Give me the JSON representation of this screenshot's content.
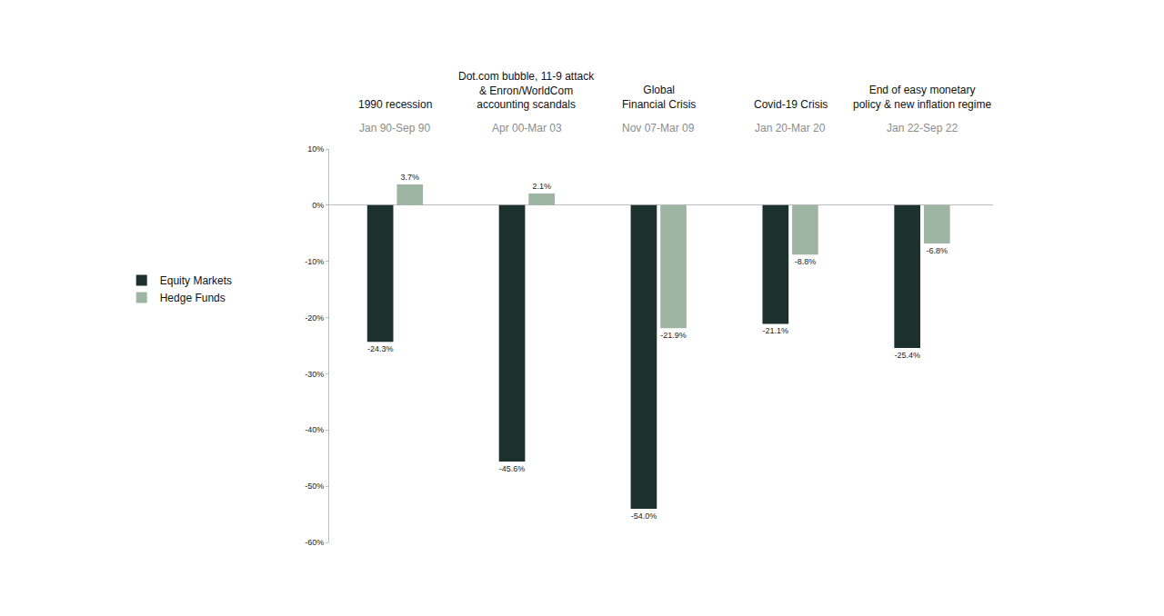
{
  "chart_data": {
    "type": "bar",
    "categories": [
      "1990 recession",
      "Dot.com bubble, 11-9 attack\n& Enron/WorldCom\naccounting scandals",
      "Global\nFinancial Crisis",
      "Covid-19 Crisis",
      "End of easy monetary\npolicy & new inflation regime"
    ],
    "periods": [
      "Jan 90-Sep 90",
      "Apr 00-Mar 03",
      "Nov 07-Mar 09",
      "Jan 20-Mar 20",
      "Jan 22-Sep 22"
    ],
    "series": [
      {
        "name": "Equity Markets",
        "color": "#1c312e",
        "values": [
          -24.3,
          -45.6,
          -54.0,
          -21.1,
          -25.4
        ],
        "value_labels": [
          "-24.3%",
          "-45.6%",
          "-54.0%",
          "-21.1%",
          "-25.4%"
        ]
      },
      {
        "name": "Hedge Funds",
        "color": "#9fb5a4",
        "values": [
          3.7,
          2.1,
          -21.9,
          -8.8,
          -6.8
        ],
        "value_labels": [
          "3.7%",
          "2.1%",
          "-21.9%",
          "-8.8%",
          "-6.8%"
        ]
      }
    ],
    "ylim": [
      -60,
      10
    ],
    "yticks": [
      {
        "value": 10,
        "label": "10%"
      },
      {
        "value": 0,
        "label": "0%"
      },
      {
        "value": -10,
        "label": "-10%"
      },
      {
        "value": -20,
        "label": "-20%"
      },
      {
        "value": -30,
        "label": "-30%"
      },
      {
        "value": -40,
        "label": "-40%"
      },
      {
        "value": -50,
        "label": "-50%"
      },
      {
        "value": -60,
        "label": "-60%"
      }
    ],
    "grid": false,
    "legend": "left",
    "data_labels": true,
    "tick_labels": "y"
  }
}
